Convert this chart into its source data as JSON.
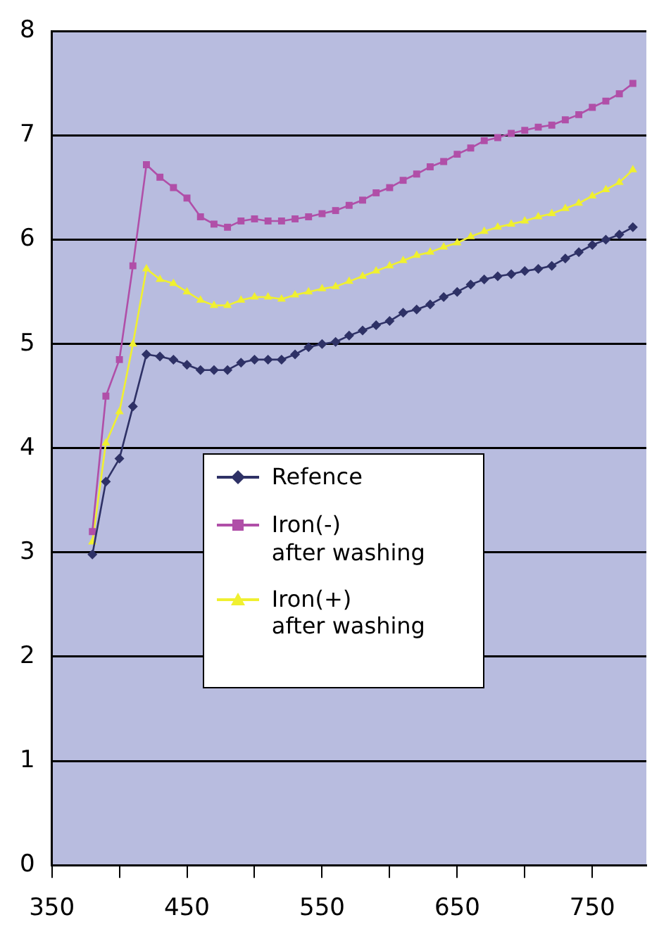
{
  "chart_data": {
    "type": "line",
    "x": [
      380,
      390,
      400,
      410,
      420,
      430,
      440,
      450,
      460,
      470,
      480,
      490,
      500,
      510,
      520,
      530,
      540,
      550,
      560,
      570,
      580,
      590,
      600,
      610,
      620,
      630,
      640,
      650,
      660,
      670,
      680,
      690,
      700,
      710,
      720,
      730,
      740,
      750,
      760,
      770,
      780
    ],
    "series": [
      {
        "name": "Refence",
        "color": "#2e3166",
        "marker": "diamond",
        "values": [
          2.98,
          3.68,
          3.9,
          4.4,
          4.9,
          4.88,
          4.85,
          4.8,
          4.75,
          4.75,
          4.75,
          4.82,
          4.85,
          4.85,
          4.85,
          4.9,
          4.97,
          5.0,
          5.02,
          5.08,
          5.13,
          5.18,
          5.22,
          5.3,
          5.33,
          5.38,
          5.45,
          5.5,
          5.57,
          5.62,
          5.65,
          5.67,
          5.7,
          5.72,
          5.75,
          5.82,
          5.88,
          5.95,
          6.0,
          6.05,
          6.12
        ]
      },
      {
        "name": "Iron(-) after washing",
        "color": "#b04fa8",
        "marker": "square",
        "values": [
          3.2,
          4.5,
          4.85,
          5.75,
          6.72,
          6.6,
          6.5,
          6.4,
          6.22,
          6.15,
          6.12,
          6.18,
          6.2,
          6.18,
          6.18,
          6.2,
          6.22,
          6.25,
          6.28,
          6.33,
          6.38,
          6.45,
          6.5,
          6.57,
          6.63,
          6.7,
          6.75,
          6.82,
          6.88,
          6.95,
          6.98,
          7.02,
          7.05,
          7.08,
          7.1,
          7.15,
          7.2,
          7.27,
          7.33,
          7.4,
          7.5
        ]
      },
      {
        "name": "Iron(+) after washing",
        "color": "#f0f030",
        "marker": "triangle",
        "values": [
          3.1,
          4.05,
          4.35,
          5.0,
          5.72,
          5.62,
          5.58,
          5.5,
          5.42,
          5.37,
          5.37,
          5.42,
          5.45,
          5.45,
          5.43,
          5.47,
          5.5,
          5.53,
          5.55,
          5.6,
          5.65,
          5.7,
          5.75,
          5.8,
          5.85,
          5.88,
          5.93,
          5.97,
          6.03,
          6.08,
          6.12,
          6.15,
          6.18,
          6.22,
          6.25,
          6.3,
          6.35,
          6.42,
          6.48,
          6.55,
          6.67
        ]
      }
    ],
    "xlim": [
      350,
      790
    ],
    "xticks": [
      350,
      {
        "value": 400,
        "label": null
      },
      450,
      {
        "value": 500,
        "label": null
      },
      550,
      {
        "value": 600,
        "label": null
      },
      650,
      {
        "value": 700,
        "label": null
      },
      750
    ],
    "ylim": [
      0,
      8
    ],
    "yticks": [
      0,
      1,
      2,
      3,
      4,
      5,
      6,
      7,
      8
    ],
    "grid": "y",
    "legend": "center",
    "line_style": "solid"
  }
}
